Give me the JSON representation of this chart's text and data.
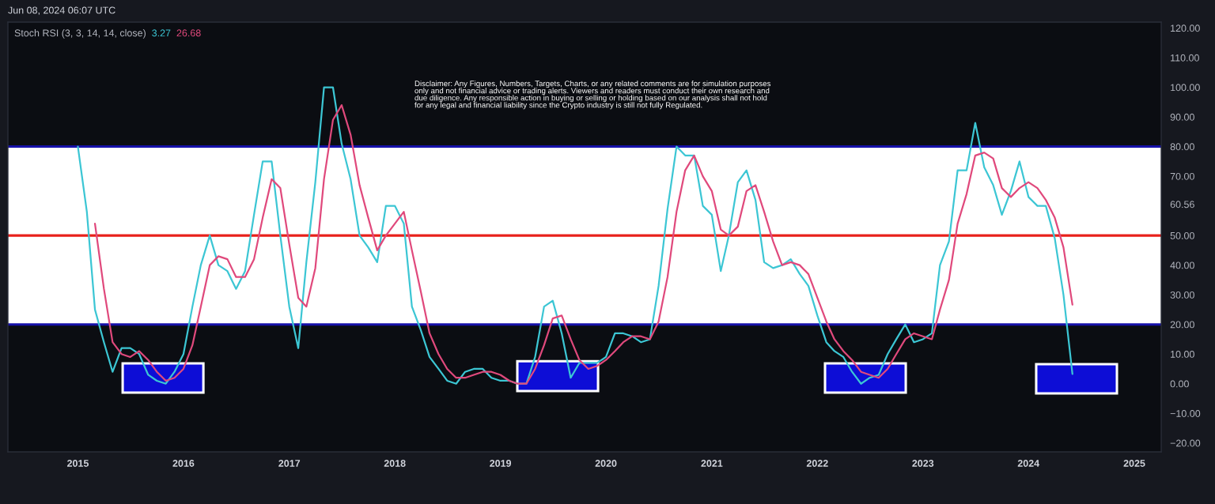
{
  "chart_data": {
    "type": "line",
    "title": "Stoch RSI (3, 3, 14, 14, close)",
    "annotations": [
      "Jun 08, 2024 06:07 UTC",
      "3.27",
      "26.68",
      "Disclaimer: Any Figures, Numbers, Targets, Charts, or any related comments are for simulation purposes\nonly and not financial advice or trading alerts. Viewers and readers must conduct their own research and\ndue diligence. Any responsible action in buying or selling or holding based on our analysis shall not hold\nfor any legal and financial liability since the Crypto industry is still not fully Regulated."
    ],
    "x": [
      "2015-01",
      "2015-02",
      "2015-03",
      "2015-04",
      "2015-05",
      "2015-06",
      "2015-07",
      "2015-08",
      "2015-09",
      "2015-10",
      "2015-11",
      "2015-12",
      "2016-01",
      "2016-02",
      "2016-03",
      "2016-04",
      "2016-05",
      "2016-06",
      "2016-07",
      "2016-08",
      "2016-09",
      "2016-10",
      "2016-11",
      "2016-12",
      "2017-01",
      "2017-02",
      "2017-03",
      "2017-04",
      "2017-05",
      "2017-06",
      "2017-07",
      "2017-08",
      "2017-09",
      "2017-10",
      "2017-11",
      "2017-12",
      "2018-01",
      "2018-02",
      "2018-03",
      "2018-04",
      "2018-05",
      "2018-06",
      "2018-07",
      "2018-08",
      "2018-09",
      "2018-10",
      "2018-11",
      "2018-12",
      "2019-01",
      "2019-02",
      "2019-03",
      "2019-04",
      "2019-05",
      "2019-06",
      "2019-07",
      "2019-08",
      "2019-09",
      "2019-10",
      "2019-11",
      "2019-12",
      "2020-01",
      "2020-02",
      "2020-03",
      "2020-04",
      "2020-05",
      "2020-06",
      "2020-07",
      "2020-08",
      "2020-09",
      "2020-10",
      "2020-11",
      "2020-12",
      "2021-01",
      "2021-02",
      "2021-03",
      "2021-04",
      "2021-05",
      "2021-06",
      "2021-07",
      "2021-08",
      "2021-09",
      "2021-10",
      "2021-11",
      "2021-12",
      "2022-01",
      "2022-02",
      "2022-03",
      "2022-04",
      "2022-05",
      "2022-06",
      "2022-07",
      "2022-08",
      "2022-09",
      "2022-10",
      "2022-11",
      "2022-12",
      "2023-01",
      "2023-02",
      "2023-03",
      "2023-04",
      "2023-05",
      "2023-06",
      "2023-07",
      "2023-08",
      "2023-09",
      "2023-10",
      "2023-11",
      "2023-12",
      "2024-01",
      "2024-02",
      "2024-03",
      "2024-04",
      "2024-05",
      "2024-06"
    ],
    "series": [
      {
        "color": "#3cc6d4",
        "values": [
          80,
          58,
          25,
          14,
          4,
          12,
          12,
          10,
          3,
          1,
          0,
          4,
          10,
          26,
          40,
          50,
          40,
          38,
          32,
          38,
          57,
          75,
          75,
          50,
          26,
          12,
          41,
          68,
          100,
          100,
          81,
          69,
          50,
          46,
          41,
          60,
          60,
          54,
          26,
          18,
          9,
          5,
          1,
          0,
          4,
          5,
          5,
          2,
          1,
          1,
          0,
          0,
          9,
          26,
          28,
          17,
          2,
          7,
          7,
          7,
          9,
          17,
          17,
          16,
          14,
          15,
          33,
          59,
          80,
          77,
          77,
          60,
          57,
          38,
          50,
          68,
          72,
          62,
          41,
          39,
          40,
          42,
          37,
          33,
          23,
          14,
          11,
          9,
          4,
          0,
          2,
          3,
          10,
          15,
          20,
          14,
          15,
          17,
          40,
          48,
          72,
          72,
          88,
          73,
          67,
          57,
          65,
          75,
          63,
          60,
          60,
          49,
          30,
          3.27
        ]
      },
      {
        "color": "#e0497c",
        "values": [
          null,
          null,
          54,
          32,
          14,
          10,
          9,
          11,
          8,
          4,
          1,
          2,
          5,
          13,
          26,
          40,
          43,
          42,
          36,
          36,
          42,
          56,
          69,
          66,
          47,
          29,
          26,
          39,
          69,
          89,
          94,
          84,
          67,
          56,
          45,
          50,
          54,
          58,
          45,
          31,
          17,
          10,
          5,
          2,
          2,
          3,
          4,
          4,
          3,
          1,
          0,
          0,
          5,
          13,
          22,
          23,
          15,
          8,
          5,
          6,
          8,
          11,
          14,
          16,
          16,
          15,
          21,
          36,
          58,
          72,
          77,
          70,
          65,
          52,
          50,
          53,
          65,
          67,
          58,
          48,
          40,
          41,
          40,
          37,
          29,
          21,
          15,
          11,
          8,
          4,
          3,
          2,
          5,
          10,
          15,
          17,
          16,
          15,
          25,
          35,
          54,
          64,
          77,
          78,
          76,
          66,
          63,
          66,
          68,
          66,
          62,
          56,
          46,
          26.68
        ]
      }
    ],
    "xlim": [
      "2014-05-04",
      "2025-04-04"
    ],
    "xticks": [
      "2015",
      "2016",
      "2017",
      "2018",
      "2019",
      "2020",
      "2021",
      "2022",
      "2023",
      "2024",
      "2025"
    ],
    "ylim": [
      -23,
      122
    ],
    "yticks": [
      {
        "value": -20,
        "label": "−20.00"
      },
      {
        "value": -10,
        "label": "−10.00"
      },
      {
        "value": 0,
        "label": "0.00"
      },
      {
        "value": 10,
        "label": "10.00"
      },
      {
        "value": 20,
        "label": "20.00"
      },
      {
        "value": 30,
        "label": "30.00"
      },
      {
        "value": 40,
        "label": "40.00"
      },
      {
        "value": 50,
        "label": "50.00"
      },
      {
        "value": 60.56,
        "label": "60.56"
      },
      {
        "value": 70,
        "label": "70.00"
      },
      {
        "value": 80,
        "label": "80.00"
      },
      {
        "value": 90,
        "label": "90.00"
      },
      {
        "value": 100,
        "label": "100.00"
      },
      {
        "value": 110,
        "label": "110.00"
      },
      {
        "value": 120,
        "label": "120.00"
      }
    ],
    "bands": [
      {
        "axis": "y",
        "from": 20,
        "to": 80,
        "color": "#ffffff"
      }
    ],
    "ref_lines": [
      {
        "axis": "y",
        "value": 80,
        "color": "#1610a8"
      },
      {
        "axis": "y",
        "value": 50,
        "color": "#e8201a"
      },
      {
        "axis": "y",
        "value": 20,
        "color": "#1610a8"
      }
    ]
  }
}
